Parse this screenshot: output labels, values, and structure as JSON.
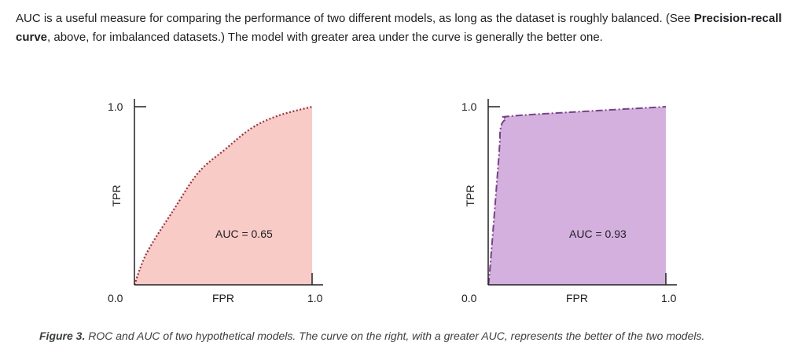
{
  "intro": {
    "text_1": "AUC is a useful measure for comparing the performance of two different models, as long as the dataset is roughly balanced. (See ",
    "link": "Precision-recall curve",
    "text_2": ", above, for imbalanced datasets.) The model with greater area under the curve is generally the better one."
  },
  "caption": {
    "label": "Figure 3.",
    "text": " ROC and AUC of two hypothetical models. The curve on the right, with a greater AUC, represents the better of the two models."
  },
  "chart_data": [
    {
      "type": "area",
      "xlabel": "FPR",
      "ylabel": "TPR",
      "xlim": [
        0,
        1
      ],
      "ylim": [
        0,
        1
      ],
      "x_ticks": [
        "0.0",
        "1.0"
      ],
      "y_ticks": [
        "1.0"
      ],
      "annotation": "AUC = 0.65",
      "line_style": "dotted",
      "colors": {
        "fill": "#f9cbc7",
        "line": "#b3262f"
      },
      "x": [
        0,
        0.07,
        0.22,
        0.36,
        0.51,
        0.66,
        0.81,
        1.0
      ],
      "y": [
        0,
        0.18,
        0.42,
        0.63,
        0.76,
        0.88,
        0.95,
        1.0
      ]
    },
    {
      "type": "area",
      "xlabel": "FPR",
      "ylabel": "TPR",
      "xlim": [
        0,
        1
      ],
      "ylim": [
        0,
        1
      ],
      "x_ticks": [
        "0.0",
        "1.0"
      ],
      "y_ticks": [
        "1.0"
      ],
      "annotation": "AUC = 0.93",
      "line_style": "dash-dot",
      "colors": {
        "fill": "#d4b0de",
        "line": "#7b3f8f"
      },
      "x": [
        0,
        0.01,
        0.06,
        0.07,
        0.1,
        0.16,
        1.0
      ],
      "y": [
        0,
        0.09,
        0.72,
        0.88,
        0.93,
        0.95,
        1.0
      ]
    }
  ]
}
